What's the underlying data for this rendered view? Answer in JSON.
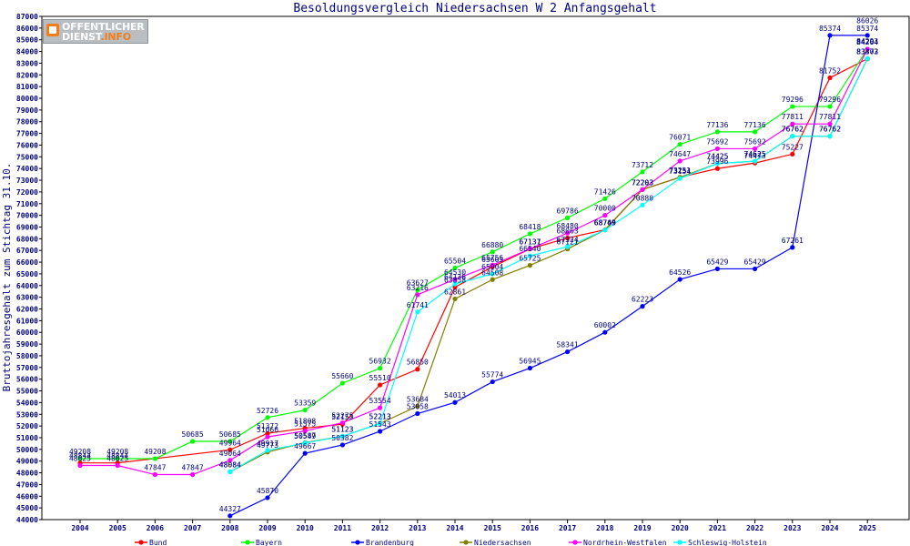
{
  "logo": {
    "line1": "OFFENTLICHER",
    "line2a": "DIENST",
    "line2b": ".INFO"
  },
  "chart_data": {
    "type": "line",
    "title": "Besoldungsvergleich Niedersachsen W 2 Anfangsgehalt",
    "xlabel": "",
    "ylabel": "Bruttojahresgehalt zum Stichtag 31.10.",
    "ylim": [
      44000,
      87000
    ],
    "ytick_step": 1000,
    "grid": false,
    "legend_position": "bottom",
    "categories": [
      "2004",
      "2005",
      "2006",
      "2007",
      "2008",
      "2009",
      "2010",
      "2011",
      "2012",
      "2013",
      "2014",
      "2015",
      "2016",
      "2017",
      "2018",
      "2019",
      "2020",
      "2021",
      "2022",
      "2023",
      "2024",
      "2025"
    ],
    "series": [
      {
        "name": "Bund",
        "color": "#ff0000",
        "values": [
          48844,
          48844,
          null,
          null,
          49964,
          51372,
          51808,
          52153,
          55510,
          56850,
          63858,
          65603,
          67131,
          68063,
          68763,
          72203,
          73251,
          73996,
          74473,
          75227,
          81752,
          83373
        ]
      },
      {
        "name": "Bayern",
        "color": "#00ff00",
        "values": [
          49208,
          49208,
          49208,
          50685,
          50685,
          52726,
          53359,
          55660,
          56932,
          63627,
          65504,
          66880,
          68418,
          69786,
          71426,
          73712,
          76071,
          77136,
          77136,
          79296,
          79296,
          84204
        ]
      },
      {
        "name": "Brandenburg",
        "color": "#0000ff",
        "values": [
          null,
          null,
          null,
          null,
          44327,
          45870,
          49667,
          50382,
          51543,
          53058,
          54013,
          55774,
          56945,
          58341,
          60002,
          62223,
          64526,
          65429,
          65429,
          67261,
          85374,
          85374
        ]
      },
      {
        "name": "Niedersachsen",
        "color": "#808000",
        "values": [
          null,
          null,
          null,
          null,
          48084,
          49773,
          50587,
          51123,
          52213,
          53684,
          62861,
          64508,
          65725,
          67121,
          68749,
          72203,
          73251,
          74425,
          74625,
          76762,
          76762,
          83373
        ]
      },
      {
        "name": "Nordrhein-Westfalen",
        "color": "#ff00ff",
        "values": [
          48625,
          48625,
          47847,
          47847,
          49064,
          51066,
          51575,
          52275,
          53554,
          63216,
          64530,
          65756,
          67137,
          68480,
          70000,
          72203,
          74647,
          75692,
          75692,
          77811,
          77811,
          84204
        ]
      },
      {
        "name": "Schleswig-Holstein",
        "color": "#00ffff",
        "values": [
          null,
          null,
          null,
          null,
          48084,
          49917,
          50549,
          51123,
          52213,
          61741,
          64136,
          65004,
          66540,
          67324,
          68749,
          70880,
          73154,
          74425,
          74625,
          76762,
          76762,
          83402
        ]
      }
    ],
    "annotations": [
      {
        "year": "2025",
        "value": 86026,
        "text": "86026"
      },
      {
        "year": "2025",
        "value": 84293,
        "text": "84293"
      }
    ]
  }
}
